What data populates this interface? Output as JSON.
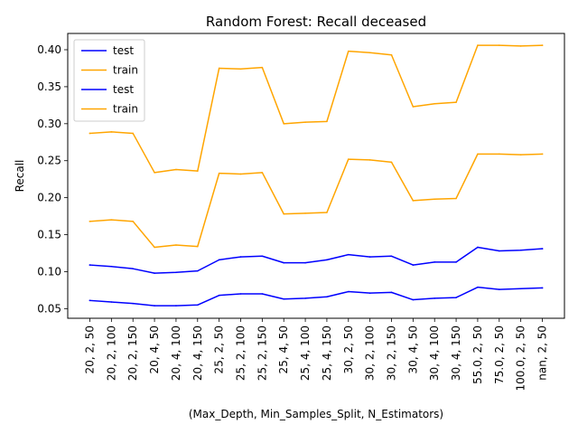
{
  "chart_data": {
    "type": "line",
    "title": "Random Forest: Recall deceased",
    "xlabel": "(Max_Depth, Min_Samples_Split, N_Estimators)",
    "ylabel": "Recall",
    "categories": [
      "20, 2, 50",
      "20, 2, 100",
      "20, 2, 150",
      "20, 4, 50",
      "20, 4, 100",
      "20, 4, 150",
      "25, 2, 50",
      "25, 2, 100",
      "25, 2, 150",
      "25, 4, 50",
      "25, 4, 100",
      "25, 4, 150",
      "30, 2, 50",
      "30, 2, 100",
      "30, 2, 150",
      "30, 4, 50",
      "30, 4, 100",
      "30, 4, 150",
      "55.0, 2, 50",
      "75.0, 2, 50",
      "100.0, 2, 50",
      "nan, 2, 50"
    ],
    "ylim": [
      0.037,
      0.422
    ],
    "yticks": [
      0.05,
      0.1,
      0.15,
      0.2,
      0.25,
      0.3,
      0.35,
      0.4
    ],
    "ytick_labels": [
      "0.05",
      "0.10",
      "0.15",
      "0.20",
      "0.25",
      "0.30",
      "0.35",
      "0.40"
    ],
    "grid": false,
    "legend_position": "top-left",
    "series": [
      {
        "name": "test",
        "color": "#0000ff",
        "values": [
          0.061,
          0.059,
          0.057,
          0.054,
          0.054,
          0.055,
          0.068,
          0.07,
          0.07,
          0.063,
          0.064,
          0.066,
          0.073,
          0.071,
          0.072,
          0.062,
          0.064,
          0.065,
          0.079,
          0.076,
          0.077,
          0.078
        ]
      },
      {
        "name": "train",
        "color": "#ffa500",
        "values": [
          0.168,
          0.17,
          0.168,
          0.133,
          0.136,
          0.134,
          0.233,
          0.232,
          0.234,
          0.178,
          0.179,
          0.18,
          0.252,
          0.251,
          0.248,
          0.196,
          0.198,
          0.199,
          0.259,
          0.259,
          0.258,
          0.259
        ]
      },
      {
        "name": "test",
        "color": "#0000ff",
        "values": [
          0.109,
          0.107,
          0.104,
          0.098,
          0.099,
          0.101,
          0.116,
          0.12,
          0.121,
          0.112,
          0.112,
          0.116,
          0.123,
          0.12,
          0.121,
          0.109,
          0.113,
          0.113,
          0.133,
          0.128,
          0.129,
          0.131
        ]
      },
      {
        "name": "train",
        "color": "#ffa500",
        "values": [
          0.287,
          0.289,
          0.287,
          0.234,
          0.238,
          0.236,
          0.375,
          0.374,
          0.376,
          0.3,
          0.302,
          0.303,
          0.398,
          0.396,
          0.393,
          0.323,
          0.327,
          0.329,
          0.406,
          0.406,
          0.405,
          0.406
        ]
      }
    ]
  }
}
